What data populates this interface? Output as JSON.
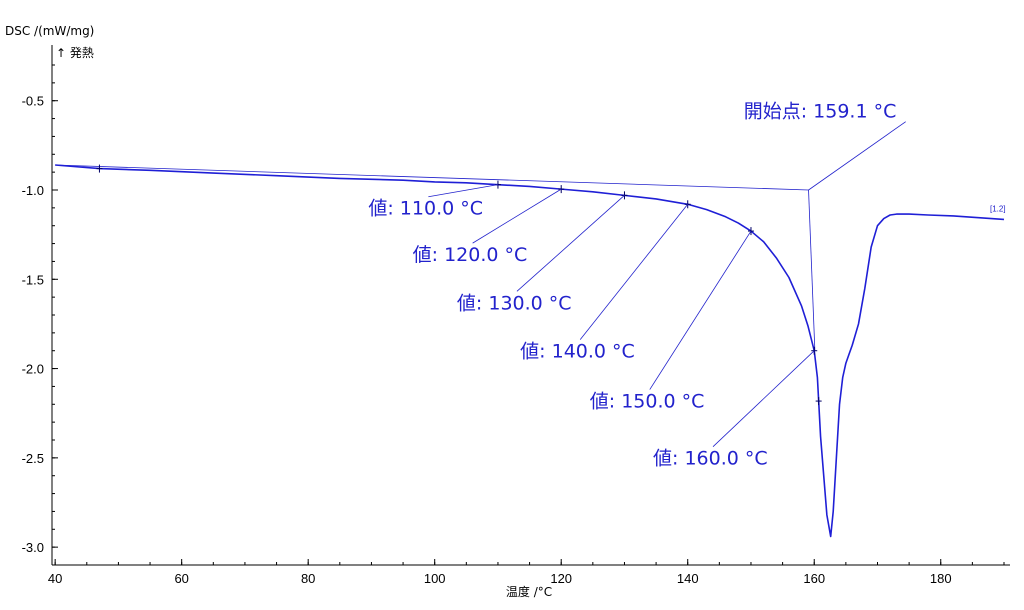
{
  "chart_data": {
    "type": "line",
    "ylabel": "DSC /(mW/mg)",
    "ylabel_sub": "↑ 発熱",
    "xlabel": "温度 /°C",
    "xlim": [
      39.5,
      190
    ],
    "ylim": [
      -3.1,
      -0.3
    ],
    "x_ticks": [
      40,
      60,
      80,
      100,
      120,
      140,
      160,
      180
    ],
    "y_ticks": [
      -0.5,
      -1.0,
      -1.5,
      -2.0,
      -2.5,
      -3.0
    ],
    "x_tick_labels": [
      "40",
      "60",
      "80",
      "100",
      "120",
      "140",
      "160",
      "180"
    ],
    "y_tick_labels": [
      "-0.5",
      "-1.0",
      "-1.5",
      "-2.0",
      "-2.5",
      "-3.0"
    ],
    "grid": false,
    "colors": {
      "curve": "#1f1fd6",
      "annotation": "#2222cc",
      "axis": "#000000"
    },
    "series": [
      {
        "name": "[1.2]",
        "x": [
          40,
          47,
          55,
          65,
          75,
          85,
          95,
          100,
          105,
          110,
          115,
          120,
          125,
          130,
          135,
          140,
          143,
          146,
          148,
          150,
          152,
          154,
          156,
          158,
          159,
          160,
          160.5,
          161,
          161.5,
          162,
          162.6,
          163,
          163.5,
          164,
          164.5,
          165,
          165.5,
          166,
          167,
          168,
          169,
          170,
          171,
          172,
          173,
          175,
          178,
          182,
          186,
          190
        ],
        "y": [
          -0.86,
          -0.88,
          -0.89,
          -0.905,
          -0.92,
          -0.935,
          -0.945,
          -0.955,
          -0.96,
          -0.97,
          -0.98,
          -0.995,
          -1.01,
          -1.03,
          -1.05,
          -1.08,
          -1.11,
          -1.15,
          -1.185,
          -1.23,
          -1.29,
          -1.38,
          -1.49,
          -1.65,
          -1.76,
          -1.9,
          -2.05,
          -2.38,
          -2.6,
          -2.82,
          -2.94,
          -2.8,
          -2.5,
          -2.2,
          -2.05,
          -1.97,
          -1.92,
          -1.87,
          -1.75,
          -1.55,
          -1.32,
          -1.2,
          -1.16,
          -1.14,
          -1.135,
          -1.135,
          -1.14,
          -1.145,
          -1.155,
          -1.165
        ]
      }
    ],
    "baseline": {
      "x": [
        40,
        159.1
      ],
      "y": [
        -0.86,
        -1.0
      ]
    },
    "onset": {
      "label": "開始点: 159.1 °C",
      "point": {
        "x": 159.1,
        "y": -1.0
      },
      "text_anchor": {
        "x": 161.5,
        "y": -0.55
      }
    },
    "value_annotations": [
      {
        "label": "値: 110.0 °C",
        "x": 110,
        "y": -0.97,
        "text_anchor": {
          "x": 99,
          "y": -1.06
        }
      },
      {
        "label": "値: 120.0 °C",
        "x": 120,
        "y": -0.995,
        "text_anchor": {
          "x": 106,
          "y": -1.32
        }
      },
      {
        "label": "値: 130.0 °C",
        "x": 130,
        "y": -1.03,
        "text_anchor": {
          "x": 113,
          "y": -1.59
        }
      },
      {
        "label": "値: 140.0 °C",
        "x": 140,
        "y": -1.08,
        "text_anchor": {
          "x": 123,
          "y": -1.86
        }
      },
      {
        "label": "値: 150.0 °C",
        "x": 150,
        "y": -1.23,
        "text_anchor": {
          "x": 134,
          "y": -2.14
        }
      },
      {
        "label": "値: 160.0 °C",
        "x": 160,
        "y": -1.9,
        "text_anchor": {
          "x": 144,
          "y": -2.46
        }
      }
    ],
    "markers_x": [
      47,
      110,
      120,
      130,
      140,
      150,
      160,
      160.7
    ],
    "series_tag": "[1.2]"
  }
}
